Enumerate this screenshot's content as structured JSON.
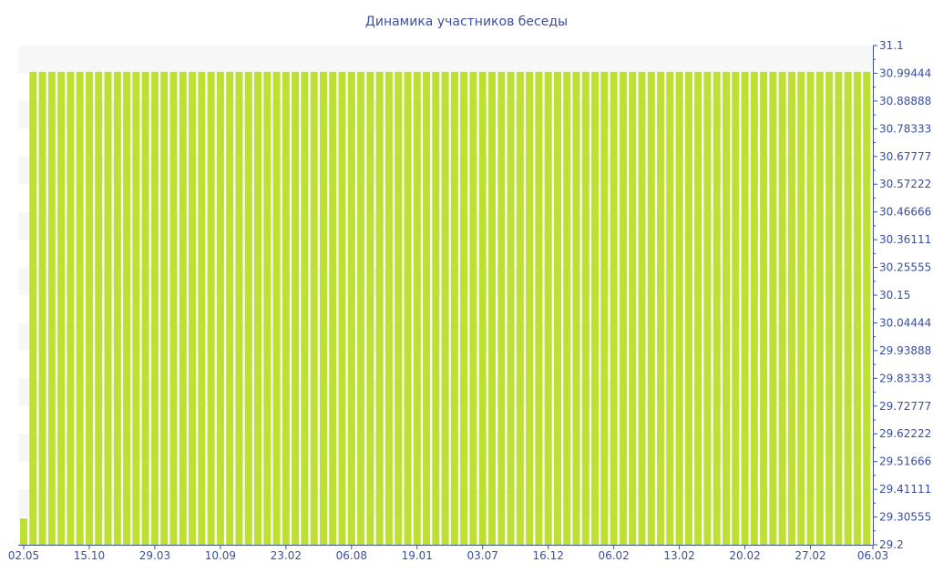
{
  "chart_data": {
    "type": "bar",
    "title": "Динамика участников беседы",
    "xlabel": "",
    "ylabel": "",
    "ylim": [
      29.2,
      31.1
    ],
    "y_axis_position": "right",
    "y_ticks": [
      "31.1",
      "30.99444",
      "30.88888",
      "30.78333",
      "30.67777",
      "30.57222",
      "30.46666",
      "30.36111",
      "30.25555",
      "30.15",
      "30.04444",
      "29.93888",
      "29.83333",
      "29.72777",
      "29.62222",
      "29.51666",
      "29.41111",
      "29.30555",
      "29.2"
    ],
    "x_tick_labels": [
      {
        "index": 0,
        "label": "02.05"
      },
      {
        "index": 7,
        "label": "15.10"
      },
      {
        "index": 14,
        "label": "29.03"
      },
      {
        "index": 21,
        "label": "10.09"
      },
      {
        "index": 28,
        "label": "23.02"
      },
      {
        "index": 35,
        "label": "06.08"
      },
      {
        "index": 42,
        "label": "19.01"
      },
      {
        "index": 49,
        "label": "03.07"
      },
      {
        "index": 56,
        "label": "16.12"
      },
      {
        "index": 63,
        "label": "06.02"
      },
      {
        "index": 70,
        "label": "13.02"
      },
      {
        "index": 77,
        "label": "20.02"
      },
      {
        "index": 84,
        "label": "27.02"
      },
      {
        "index": 90,
        "label": "06.03"
      }
    ],
    "bar_count": 91,
    "first_value": 29.3,
    "other_values": 31,
    "grid": "alternating horizontal bands",
    "colors": {
      "bar": "#bde033",
      "band": "#f7f7f7",
      "axis": "#3a4f9e",
      "text": "#3a4f9e"
    }
  }
}
